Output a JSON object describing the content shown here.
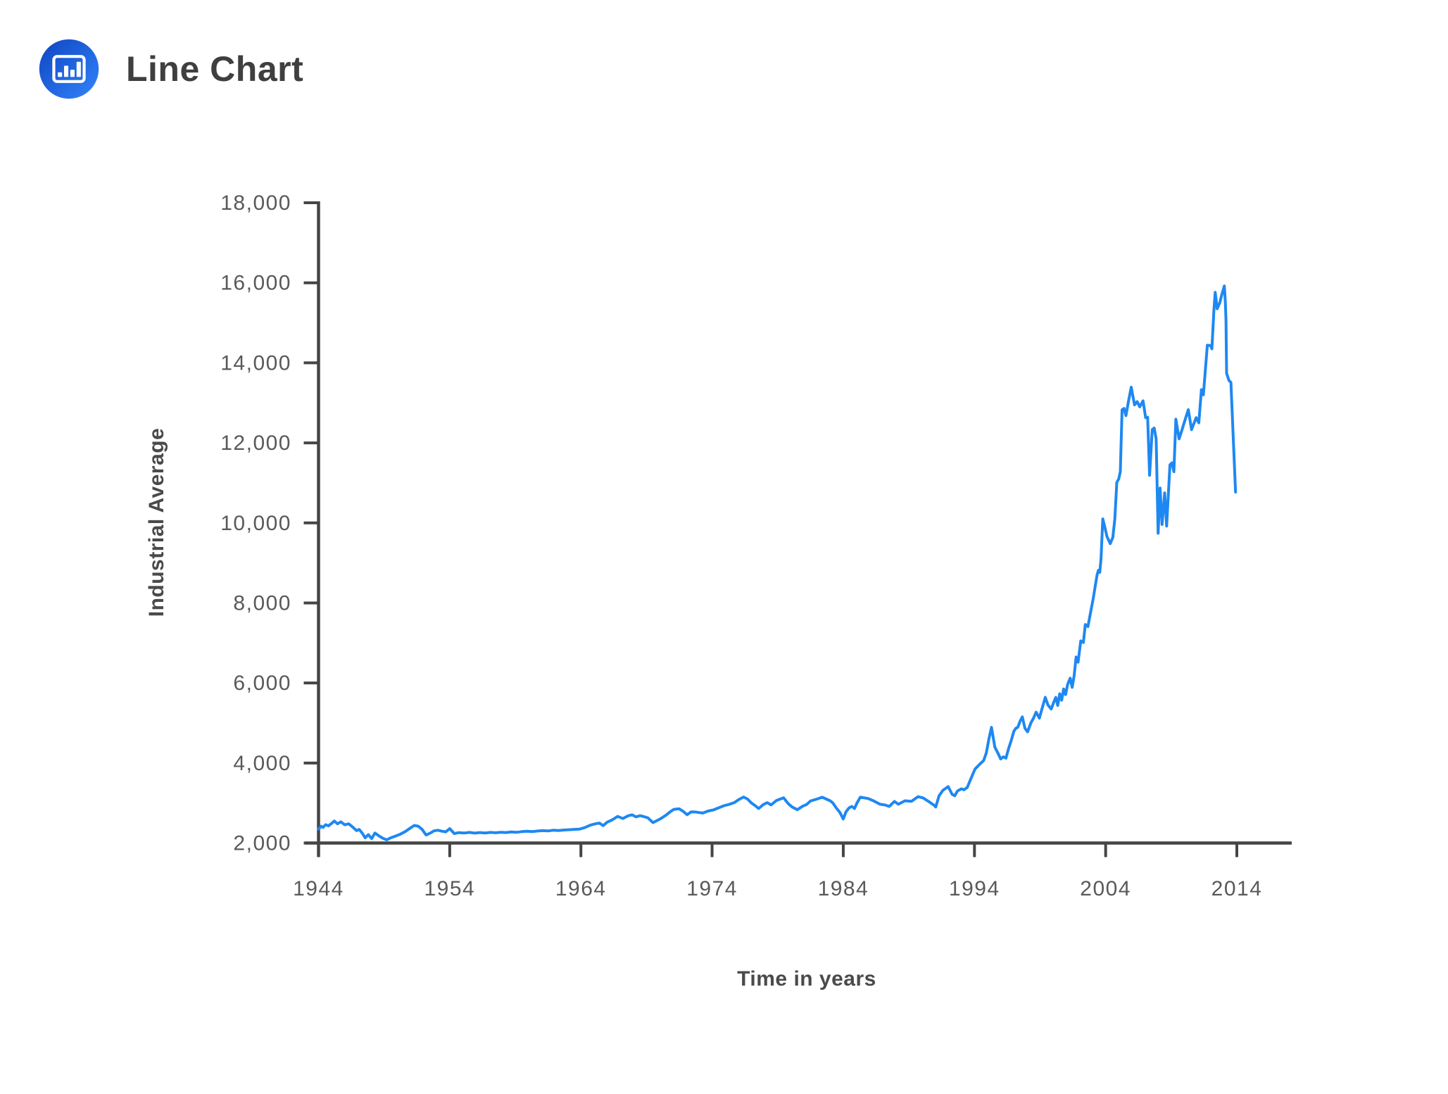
{
  "header": {
    "title": "Line Chart",
    "icon": "bar-chart-icon"
  },
  "colors": {
    "line": "#1e88f2",
    "axis": "#454545",
    "tick_label": "#595959",
    "title": "#3f3f3f",
    "axis_title": "#4a4a4a",
    "icon_gradient_start": "#0f45c2",
    "icon_gradient_end": "#3184fa"
  },
  "chart_data": {
    "type": "line",
    "title": "Line Chart",
    "xlabel": "Time in years",
    "ylabel": "Industrial Average",
    "xlim": [
      1944,
      2018
    ],
    "ylim": [
      2000,
      18000
    ],
    "grid": false,
    "legend": false,
    "x_ticks": [
      1944,
      1954,
      1964,
      1974,
      1984,
      1994,
      2004,
      2014
    ],
    "x_tick_labels": [
      "1944",
      "1954",
      "1964",
      "1974",
      "1984",
      "1994",
      "2004",
      "2014"
    ],
    "y_ticks": [
      2000,
      4000,
      6000,
      8000,
      10000,
      12000,
      14000,
      16000,
      18000
    ],
    "y_tick_labels": [
      "2,000",
      "4,000",
      "6,000",
      "8,000",
      "10,000",
      "12,000",
      "14,000",
      "16,000",
      "18,000"
    ],
    "series": [
      {
        "name": "Industrial Average",
        "points": [
          [
            1944.0,
            2350
          ],
          [
            1944.2,
            2420
          ],
          [
            1944.35,
            2390
          ],
          [
            1944.55,
            2460
          ],
          [
            1944.75,
            2430
          ],
          [
            1945.0,
            2490
          ],
          [
            1945.2,
            2550
          ],
          [
            1945.45,
            2480
          ],
          [
            1945.7,
            2530
          ],
          [
            1946.0,
            2455
          ],
          [
            1946.3,
            2480
          ],
          [
            1946.6,
            2400
          ],
          [
            1946.9,
            2310
          ],
          [
            1947.1,
            2340
          ],
          [
            1947.35,
            2240
          ],
          [
            1947.55,
            2130
          ],
          [
            1947.8,
            2210
          ],
          [
            1948.05,
            2110
          ],
          [
            1948.3,
            2250
          ],
          [
            1948.6,
            2180
          ],
          [
            1948.9,
            2120
          ],
          [
            1949.2,
            2080
          ],
          [
            1949.5,
            2130
          ],
          [
            1949.8,
            2165
          ],
          [
            1950.2,
            2215
          ],
          [
            1950.6,
            2285
          ],
          [
            1951.0,
            2375
          ],
          [
            1951.3,
            2440
          ],
          [
            1951.6,
            2420
          ],
          [
            1951.9,
            2340
          ],
          [
            1952.2,
            2200
          ],
          [
            1952.5,
            2245
          ],
          [
            1952.8,
            2305
          ],
          [
            1953.1,
            2320
          ],
          [
            1953.4,
            2295
          ],
          [
            1953.7,
            2280
          ],
          [
            1954.0,
            2360
          ],
          [
            1954.35,
            2235
          ],
          [
            1954.7,
            2260
          ],
          [
            1955.1,
            2250
          ],
          [
            1955.5,
            2265
          ],
          [
            1955.9,
            2248
          ],
          [
            1956.3,
            2262
          ],
          [
            1956.7,
            2252
          ],
          [
            1957.1,
            2266
          ],
          [
            1957.5,
            2256
          ],
          [
            1957.9,
            2270
          ],
          [
            1958.3,
            2262
          ],
          [
            1958.7,
            2276
          ],
          [
            1959.1,
            2270
          ],
          [
            1959.5,
            2285
          ],
          [
            1959.9,
            2295
          ],
          [
            1960.3,
            2287
          ],
          [
            1960.7,
            2300
          ],
          [
            1961.1,
            2310
          ],
          [
            1961.5,
            2302
          ],
          [
            1961.9,
            2320
          ],
          [
            1962.3,
            2312
          ],
          [
            1962.7,
            2326
          ],
          [
            1963.1,
            2332
          ],
          [
            1963.5,
            2342
          ],
          [
            1963.9,
            2348
          ],
          [
            1964.3,
            2385
          ],
          [
            1964.7,
            2445
          ],
          [
            1965.1,
            2480
          ],
          [
            1965.4,
            2500
          ],
          [
            1965.7,
            2435
          ],
          [
            1966.0,
            2520
          ],
          [
            1966.4,
            2580
          ],
          [
            1966.8,
            2665
          ],
          [
            1967.2,
            2612
          ],
          [
            1967.6,
            2680
          ],
          [
            1967.9,
            2705
          ],
          [
            1968.2,
            2652
          ],
          [
            1968.5,
            2685
          ],
          [
            1968.8,
            2660
          ],
          [
            1969.1,
            2630
          ],
          [
            1969.5,
            2510
          ],
          [
            1969.8,
            2562
          ],
          [
            1970.1,
            2612
          ],
          [
            1970.5,
            2700
          ],
          [
            1970.8,
            2780
          ],
          [
            1971.1,
            2842
          ],
          [
            1971.5,
            2855
          ],
          [
            1971.8,
            2790
          ],
          [
            1972.1,
            2708
          ],
          [
            1972.4,
            2780
          ],
          [
            1972.7,
            2775
          ],
          [
            1973.0,
            2762
          ],
          [
            1973.3,
            2750
          ],
          [
            1973.7,
            2800
          ],
          [
            1974.1,
            2826
          ],
          [
            1974.5,
            2880
          ],
          [
            1974.9,
            2932
          ],
          [
            1975.3,
            2966
          ],
          [
            1975.7,
            3012
          ],
          [
            1976.0,
            3080
          ],
          [
            1976.4,
            3150
          ],
          [
            1976.7,
            3100
          ],
          [
            1977.0,
            3000
          ],
          [
            1977.3,
            2930
          ],
          [
            1977.55,
            2862
          ],
          [
            1977.9,
            2960
          ],
          [
            1978.2,
            3010
          ],
          [
            1978.5,
            2952
          ],
          [
            1978.9,
            3062
          ],
          [
            1979.2,
            3100
          ],
          [
            1979.45,
            3130
          ],
          [
            1979.8,
            2985
          ],
          [
            1980.1,
            2900
          ],
          [
            1980.5,
            2832
          ],
          [
            1980.9,
            2920
          ],
          [
            1981.2,
            2962
          ],
          [
            1981.5,
            3050
          ],
          [
            1982.0,
            3100
          ],
          [
            1982.4,
            3145
          ],
          [
            1982.7,
            3100
          ],
          [
            1983.0,
            3055
          ],
          [
            1983.2,
            3005
          ],
          [
            1983.5,
            2862
          ],
          [
            1983.75,
            2760
          ],
          [
            1984.0,
            2600
          ],
          [
            1984.2,
            2775
          ],
          [
            1984.45,
            2882
          ],
          [
            1984.65,
            2915
          ],
          [
            1984.85,
            2862
          ],
          [
            1985.05,
            3002
          ],
          [
            1985.3,
            3145
          ],
          [
            1985.9,
            3112
          ],
          [
            1986.3,
            3055
          ],
          [
            1986.8,
            2970
          ],
          [
            1987.2,
            2950
          ],
          [
            1987.5,
            2915
          ],
          [
            1987.9,
            3040
          ],
          [
            1988.2,
            2970
          ],
          [
            1988.7,
            3055
          ],
          [
            1989.2,
            3042
          ],
          [
            1989.7,
            3160
          ],
          [
            1990.1,
            3125
          ],
          [
            1990.5,
            3040
          ],
          [
            1990.9,
            2950
          ],
          [
            1991.05,
            2900
          ],
          [
            1991.3,
            3180
          ],
          [
            1991.6,
            3320
          ],
          [
            1992.0,
            3410
          ],
          [
            1992.3,
            3215
          ],
          [
            1992.5,
            3180
          ],
          [
            1992.7,
            3300
          ],
          [
            1993.0,
            3355
          ],
          [
            1993.2,
            3330
          ],
          [
            1993.45,
            3390
          ],
          [
            1993.7,
            3585
          ],
          [
            1993.9,
            3740
          ],
          [
            1994.05,
            3850
          ],
          [
            1994.4,
            3970
          ],
          [
            1994.7,
            4060
          ],
          [
            1994.9,
            4250
          ],
          [
            1995.1,
            4600
          ],
          [
            1995.3,
            4890
          ],
          [
            1995.55,
            4400
          ],
          [
            1995.8,
            4240
          ],
          [
            1996.0,
            4100
          ],
          [
            1996.2,
            4155
          ],
          [
            1996.4,
            4120
          ],
          [
            1996.6,
            4360
          ],
          [
            1996.8,
            4560
          ],
          [
            1997.0,
            4790
          ],
          [
            1997.15,
            4865
          ],
          [
            1997.3,
            4890
          ],
          [
            1997.5,
            5060
          ],
          [
            1997.65,
            5150
          ],
          [
            1997.85,
            4870
          ],
          [
            1998.05,
            4780
          ],
          [
            1998.3,
            5000
          ],
          [
            1998.5,
            5120
          ],
          [
            1998.7,
            5270
          ],
          [
            1998.95,
            5120
          ],
          [
            1999.15,
            5360
          ],
          [
            1999.4,
            5640
          ],
          [
            1999.6,
            5450
          ],
          [
            1999.85,
            5350
          ],
          [
            2000.05,
            5520
          ],
          [
            2000.2,
            5640
          ],
          [
            2000.35,
            5440
          ],
          [
            2000.5,
            5730
          ],
          [
            2000.65,
            5570
          ],
          [
            2000.8,
            5850
          ],
          [
            2000.95,
            5710
          ],
          [
            2001.1,
            5960
          ],
          [
            2001.3,
            6120
          ],
          [
            2001.45,
            5890
          ],
          [
            2001.6,
            6180
          ],
          [
            2001.75,
            6650
          ],
          [
            2001.9,
            6520
          ],
          [
            2002.1,
            7050
          ],
          [
            2002.3,
            7010
          ],
          [
            2002.45,
            7460
          ],
          [
            2002.65,
            7410
          ],
          [
            2002.85,
            7760
          ],
          [
            2003.05,
            8110
          ],
          [
            2003.2,
            8410
          ],
          [
            2003.35,
            8700
          ],
          [
            2003.45,
            8815
          ],
          [
            2003.55,
            8762
          ],
          [
            2003.65,
            9110
          ],
          [
            2003.78,
            10100
          ],
          [
            2003.95,
            9880
          ],
          [
            2004.1,
            9660
          ],
          [
            2004.35,
            9480
          ],
          [
            2004.55,
            9640
          ],
          [
            2004.7,
            10100
          ],
          [
            2004.85,
            11010
          ],
          [
            2005.0,
            11100
          ],
          [
            2005.12,
            11280
          ],
          [
            2005.25,
            12830
          ],
          [
            2005.4,
            12860
          ],
          [
            2005.55,
            12680
          ],
          [
            2005.75,
            13060
          ],
          [
            2005.95,
            13390
          ],
          [
            2006.2,
            12950
          ],
          [
            2006.4,
            13030
          ],
          [
            2006.6,
            12900
          ],
          [
            2006.85,
            13050
          ],
          [
            2007.05,
            12630
          ],
          [
            2007.2,
            12640
          ],
          [
            2007.35,
            11190
          ],
          [
            2007.55,
            12330
          ],
          [
            2007.7,
            12370
          ],
          [
            2007.85,
            12100
          ],
          [
            2008.0,
            9740
          ],
          [
            2008.15,
            10870
          ],
          [
            2008.3,
            9960
          ],
          [
            2008.5,
            10750
          ],
          [
            2008.65,
            9920
          ],
          [
            2008.9,
            11450
          ],
          [
            2009.05,
            11500
          ],
          [
            2009.2,
            11280
          ],
          [
            2009.35,
            12590
          ],
          [
            2009.6,
            12100
          ],
          [
            2009.8,
            12300
          ],
          [
            2010.0,
            12520
          ],
          [
            2010.3,
            12830
          ],
          [
            2010.55,
            12330
          ],
          [
            2010.9,
            12630
          ],
          [
            2011.1,
            12500
          ],
          [
            2011.3,
            13330
          ],
          [
            2011.45,
            13200
          ],
          [
            2011.75,
            14440
          ],
          [
            2012.0,
            14430
          ],
          [
            2012.1,
            14350
          ],
          [
            2012.25,
            15300
          ],
          [
            2012.35,
            15760
          ],
          [
            2012.5,
            15350
          ],
          [
            2012.7,
            15500
          ],
          [
            2012.85,
            15700
          ],
          [
            2013.05,
            15920
          ],
          [
            2013.12,
            15550
          ],
          [
            2013.17,
            15080
          ],
          [
            2013.22,
            13740
          ],
          [
            2013.4,
            13560
          ],
          [
            2013.55,
            13510
          ],
          [
            2013.9,
            10770
          ]
        ]
      }
    ]
  }
}
